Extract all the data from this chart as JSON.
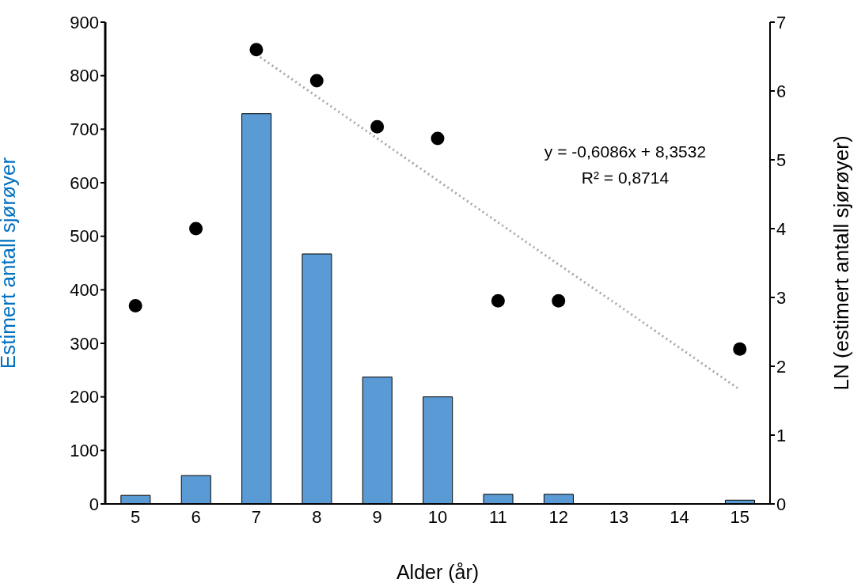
{
  "chart_data": {
    "type": "bar",
    "xlabel": "Alder (år)",
    "ylabel": "Estimert antall sjørøyer",
    "y2label": "LN (estimert antall sjørøyer)",
    "categories": [
      "5",
      "6",
      "7",
      "8",
      "9",
      "10",
      "11",
      "12",
      "13",
      "14",
      "15"
    ],
    "series": [
      {
        "color": "#5b9bd5",
        "values": [
          16,
          53,
          729,
          467,
          237,
          200,
          18,
          18,
          0,
          0,
          7
        ]
      },
      {
        "type": "scatter",
        "axis": "y2",
        "color": "#000000",
        "marker": "circle",
        "values": [
          2.88,
          4.0,
          6.6,
          6.15,
          5.48,
          5.31,
          2.95,
          2.95,
          null,
          null,
          2.25
        ]
      },
      {
        "type": "line",
        "axis": "y2",
        "color": "#a6a6a6",
        "line_style": "dotted",
        "values": [
          null,
          null,
          6.53,
          5.92,
          5.31,
          4.7,
          4.09,
          3.48,
          2.88,
          2.27,
          1.66
        ]
      }
    ],
    "ylim": [
      0,
      900
    ],
    "yticks": [
      0,
      100,
      200,
      300,
      400,
      500,
      600,
      700,
      800,
      900
    ],
    "y2lim": [
      0,
      7
    ],
    "y2ticks": [
      0,
      1,
      2,
      3,
      4,
      5,
      6,
      7
    ],
    "annotations": [
      "y = -0,6086x + 8,3532",
      "R² = 0,8714"
    ],
    "grid": false,
    "legend": false
  }
}
